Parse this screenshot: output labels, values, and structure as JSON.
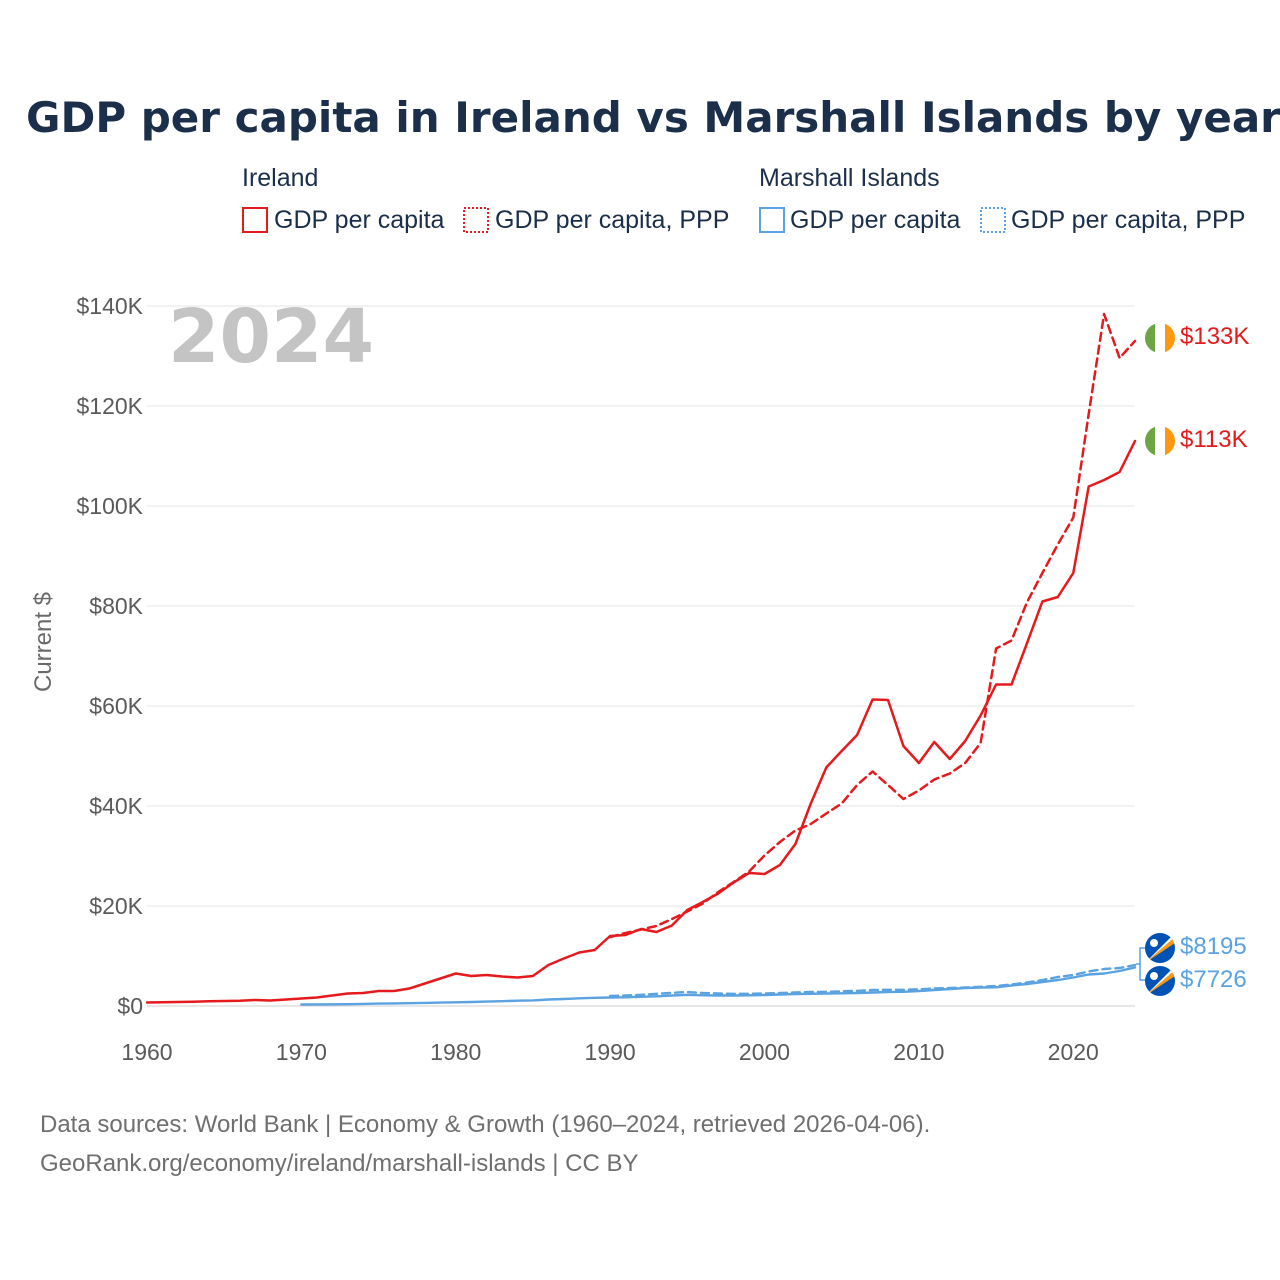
{
  "title": "GDP per capita in Ireland vs Marshall Islands by year",
  "year_watermark": "2024",
  "colors": {
    "ireland": "#e41a1c",
    "marshall": "#5aa2e0",
    "text": "#1b2f4b",
    "grid": "#e6e6e6"
  },
  "legend": {
    "ireland_label": "Ireland",
    "marshall_label": "Marshall Islands",
    "gdp_label": "GDP per capita",
    "ppp_label": "GDP per capita, PPP"
  },
  "end_labels": {
    "ie_ppp": "$133K",
    "ie_gdp": "$113K",
    "mh_ppp": "$8195",
    "mh_gdp": "$7726"
  },
  "source_line1": "Data sources: World Bank | Economy & Growth (1960–2024, retrieved 2026-04-06).",
  "source_line2": "GeoRank.org/economy/ireland/marshall-islands | CC BY",
  "chart_data": {
    "type": "line",
    "title": "GDP per capita in Ireland vs Marshall Islands by year",
    "ylabel": "Current $",
    "xlabel": "",
    "xlim": [
      1960,
      2024
    ],
    "ylim": [
      0,
      140000
    ],
    "x_ticks": [
      1960,
      1970,
      1980,
      1990,
      2000,
      2010,
      2020
    ],
    "y_ticks": [
      0,
      20000,
      40000,
      60000,
      80000,
      100000,
      120000,
      140000
    ],
    "y_tick_labels": [
      "$0",
      "$20K",
      "$40K",
      "$60K",
      "$80K",
      "$100K",
      "$120K",
      "$140K"
    ],
    "grid": true,
    "series": [
      {
        "name": "Ireland GDP per capita",
        "country": "ireland",
        "dashed": false,
        "x": [
          1960,
          1961,
          1962,
          1963,
          1964,
          1965,
          1966,
          1967,
          1968,
          1969,
          1970,
          1971,
          1972,
          1973,
          1974,
          1975,
          1976,
          1977,
          1978,
          1979,
          1980,
          1981,
          1982,
          1983,
          1984,
          1985,
          1986,
          1987,
          1988,
          1989,
          1990,
          1991,
          1992,
          1993,
          1994,
          1995,
          1996,
          1997,
          1998,
          1999,
          2000,
          2001,
          2002,
          2003,
          2004,
          2005,
          2006,
          2007,
          2008,
          2009,
          2010,
          2011,
          2012,
          2013,
          2014,
          2015,
          2016,
          2017,
          2018,
          2019,
          2020,
          2021,
          2022,
          2023,
          2024
        ],
        "values": [
          700,
          750,
          800,
          850,
          950,
          1000,
          1050,
          1200,
          1100,
          1300,
          1500,
          1700,
          2100,
          2500,
          2600,
          3000,
          3000,
          3500,
          4500,
          5500,
          6500,
          6000,
          6200,
          5900,
          5700,
          6000,
          8200,
          9500,
          10700,
          11200,
          14000,
          14200,
          15400,
          14800,
          16100,
          19200,
          20800,
          22500,
          24700,
          26600,
          26400,
          28200,
          32400,
          40500,
          47700,
          51000,
          54200,
          61300,
          61200,
          52000,
          48600,
          52800,
          49400,
          53000,
          58100,
          64300,
          64300,
          72500,
          80900,
          81800,
          86600,
          103900,
          105200,
          106800,
          113000
        ]
      },
      {
        "name": "Ireland GDP per capita, PPP",
        "country": "ireland",
        "dashed": true,
        "x": [
          1990,
          1991,
          1992,
          1993,
          1994,
          1995,
          1996,
          1997,
          1998,
          1999,
          2000,
          2001,
          2002,
          2003,
          2004,
          2005,
          2006,
          2007,
          2008,
          2009,
          2010,
          2011,
          2012,
          2013,
          2014,
          2015,
          2016,
          2017,
          2018,
          2019,
          2020,
          2021,
          2022,
          2023,
          2024
        ],
        "values": [
          13800,
          14600,
          15300,
          16000,
          17400,
          18900,
          20500,
          22800,
          24800,
          26900,
          30100,
          32800,
          35100,
          36400,
          38500,
          40500,
          44200,
          46900,
          44200,
          41400,
          43100,
          45300,
          46500,
          48600,
          52600,
          71500,
          73100,
          80700,
          86600,
          92300,
          97700,
          118400,
          138400,
          129600,
          133000
        ]
      },
      {
        "name": "Marshall Islands GDP per capita",
        "country": "marshall",
        "dashed": false,
        "x": [
          1970,
          1971,
          1972,
          1973,
          1974,
          1975,
          1976,
          1977,
          1978,
          1979,
          1980,
          1981,
          1982,
          1983,
          1984,
          1985,
          1986,
          1987,
          1988,
          1989,
          1990,
          1991,
          1992,
          1993,
          1994,
          1995,
          1996,
          1997,
          1998,
          1999,
          2000,
          2001,
          2002,
          2003,
          2004,
          2005,
          2006,
          2007,
          2008,
          2009,
          2010,
          2011,
          2012,
          2013,
          2014,
          2015,
          2016,
          2017,
          2018,
          2019,
          2020,
          2021,
          2022,
          2023,
          2024
        ],
        "values": [
          300,
          320,
          340,
          360,
          420,
          480,
          520,
          560,
          620,
          680,
          740,
          800,
          880,
          960,
          1060,
          1120,
          1300,
          1400,
          1550,
          1650,
          1700,
          1750,
          1850,
          1950,
          2100,
          2250,
          2150,
          2100,
          2100,
          2150,
          2200,
          2300,
          2400,
          2450,
          2500,
          2550,
          2600,
          2700,
          2800,
          2850,
          3000,
          3200,
          3400,
          3600,
          3700,
          3750,
          4100,
          4400,
          4800,
          5200,
          5700,
          6300,
          6500,
          7000,
          7726
        ]
      },
      {
        "name": "Marshall Islands GDP per capita, PPP",
        "country": "marshall",
        "dashed": true,
        "x": [
          1990,
          1991,
          1992,
          1993,
          1994,
          1995,
          1996,
          1997,
          1998,
          1999,
          2000,
          2001,
          2002,
          2003,
          2004,
          2005,
          2006,
          2007,
          2008,
          2009,
          2010,
          2011,
          2012,
          2013,
          2014,
          2015,
          2016,
          2017,
          2018,
          2019,
          2020,
          2021,
          2022,
          2023,
          2024
        ],
        "values": [
          2000,
          2100,
          2250,
          2450,
          2650,
          2800,
          2600,
          2500,
          2450,
          2450,
          2500,
          2600,
          2700,
          2800,
          2850,
          2950,
          3050,
          3200,
          3250,
          3250,
          3350,
          3500,
          3600,
          3700,
          3850,
          4000,
          4300,
          4700,
          5200,
          5800,
          6200,
          6900,
          7400,
          7600,
          8195
        ]
      }
    ]
  }
}
